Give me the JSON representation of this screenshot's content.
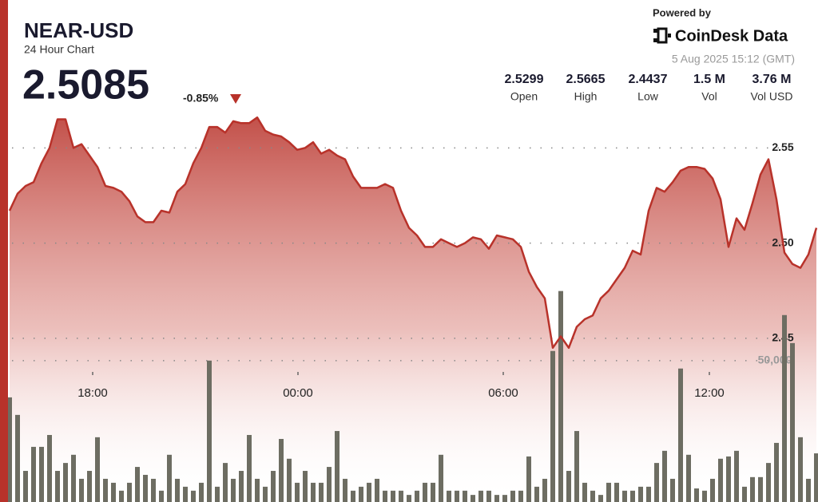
{
  "header": {
    "powered_by": "Powered by",
    "brand": "CoinDesk Data",
    "timestamp": "5 Aug 2025 15:12 (GMT)",
    "price": "2.5085",
    "change": "-0.85%",
    "stats": [
      {
        "value": "2.5299",
        "label": "Open"
      },
      {
        "value": "2.5665",
        "label": "High"
      },
      {
        "value": "2.4437",
        "label": "Low"
      },
      {
        "value": "1.5 M",
        "label": "Vol"
      },
      {
        "value": "3.76 M",
        "label": "Vol USD"
      }
    ]
  },
  "chart_data": {
    "type": "line",
    "title": "NEAR-USD",
    "subtitle": "24 Hour Chart",
    "xlim": [
      0,
      101.2
    ],
    "xticks": [
      {
        "value": 10.4,
        "label": "18:00"
      },
      {
        "value": 36.1,
        "label": "00:00"
      },
      {
        "value": 61.8,
        "label": "06:00"
      },
      {
        "value": 87.6,
        "label": "12:00"
      }
    ],
    "ylim": [
      2.364,
      2.569
    ],
    "yticks": [
      2.45,
      {
        "value": 2.5,
        "label": "2.50"
      },
      2.55
    ],
    "y2lim": [
      0,
      138000
    ],
    "y2ticks": [
      {
        "value": 50000,
        "label": "50,000"
      }
    ],
    "grid": true,
    "series": [
      {
        "name": "Price",
        "color": "#b8322a",
        "values": [
          2.517,
          2.526,
          2.53,
          2.532,
          2.542,
          2.55,
          2.565,
          2.565,
          2.55,
          2.552,
          2.546,
          2.54,
          2.53,
          2.529,
          2.527,
          2.522,
          2.514,
          2.511,
          2.511,
          2.517,
          2.516,
          2.527,
          2.531,
          2.542,
          2.55,
          2.561,
          2.561,
          2.558,
          2.564,
          2.563,
          2.563,
          2.566,
          2.559,
          2.557,
          2.556,
          2.553,
          2.549,
          2.55,
          2.553,
          2.547,
          2.549,
          2.546,
          2.544,
          2.535,
          2.529,
          2.529,
          2.529,
          2.531,
          2.529,
          2.517,
          2.508,
          2.504,
          2.498,
          2.498,
          2.502,
          2.5,
          2.498,
          2.5,
          2.503,
          2.502,
          2.497,
          2.504,
          2.503,
          2.502,
          2.498,
          2.485,
          2.477,
          2.471,
          2.445,
          2.451,
          2.445,
          2.456,
          2.46,
          2.462,
          2.471,
          2.475,
          2.481,
          2.487,
          2.496,
          2.494,
          2.517,
          2.529,
          2.527,
          2.532,
          2.538,
          2.54,
          2.54,
          2.539,
          2.534,
          2.523,
          2.498,
          2.513,
          2.507,
          2.521,
          2.536,
          2.544,
          2.523,
          2.495,
          2.489,
          2.487,
          2.494,
          2.508
        ]
      },
      {
        "name": "Volume",
        "color": "#6d6d62",
        "axis": "y2",
        "values": [
          37000,
          30800,
          11000,
          19500,
          19500,
          23700,
          11000,
          13800,
          16700,
          8200,
          11000,
          22900,
          8200,
          6800,
          4000,
          6800,
          12400,
          9600,
          8200,
          4000,
          16700,
          8200,
          5400,
          4000,
          6800,
          50000,
          5400,
          13800,
          8200,
          11000,
          23700,
          8200,
          5400,
          11000,
          22300,
          15300,
          6800,
          11000,
          6800,
          6800,
          12400,
          25100,
          8200,
          4000,
          5400,
          6800,
          8200,
          4000,
          4000,
          4000,
          2500,
          4000,
          6800,
          6800,
          16700,
          4000,
          4000,
          4000,
          2500,
          4000,
          4000,
          2500,
          2500,
          4000,
          4000,
          16100,
          5400,
          8200,
          53400,
          74600,
          11000,
          25100,
          6800,
          4000,
          2500,
          6800,
          6800,
          4000,
          4000,
          5400,
          5400,
          13800,
          18100,
          8200,
          47200,
          16700,
          4800,
          4000,
          8200,
          15300,
          16100,
          18100,
          5400,
          8800,
          8800,
          13800,
          20900,
          66100,
          56200,
          22900,
          8200,
          17200
        ]
      }
    ]
  }
}
